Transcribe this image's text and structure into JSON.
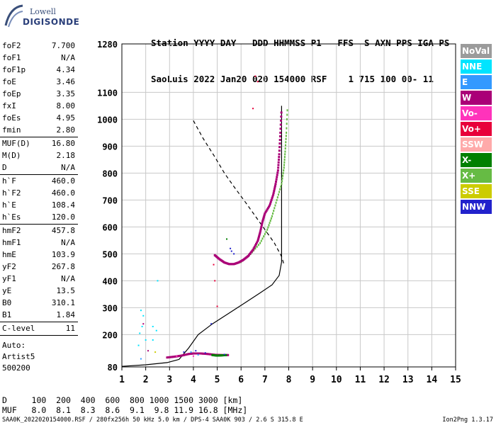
{
  "logo": {
    "line1": "Lowell",
    "line2": "DIGISONDE"
  },
  "header": {
    "line1": "Station YYYY DAY   DDD HHMMSS P1   FFS  S AXN PPS IGA PS",
    "line2": "SaoLuis 2022 Jan20 020 154000 RSF    1 715 100 00- 11"
  },
  "params": [
    {
      "label": "foF2",
      "value": "7.700"
    },
    {
      "label": "foF1",
      "value": "N/A"
    },
    {
      "label": "foF1p",
      "value": "4.34"
    },
    {
      "label": "foE",
      "value": "3.46"
    },
    {
      "label": "foEp",
      "value": "3.35"
    },
    {
      "label": "fxI",
      "value": "8.00"
    },
    {
      "label": "foEs",
      "value": "4.95"
    },
    {
      "label": "fmin",
      "value": "2.80"
    },
    {
      "sep": true
    },
    {
      "label": "MUF(D)",
      "value": "16.80"
    },
    {
      "label": "M(D)",
      "value": "2.18"
    },
    {
      "label": "D",
      "value": "N/A"
    },
    {
      "sep": true
    },
    {
      "label": "h`F",
      "value": "460.0"
    },
    {
      "label": "h`F2",
      "value": "460.0"
    },
    {
      "label": "h`E",
      "value": "108.4"
    },
    {
      "label": "h`Es",
      "value": "120.0"
    },
    {
      "sep": true
    },
    {
      "label": "hmF2",
      "value": "457.8"
    },
    {
      "label": "hmF1",
      "value": "N/A"
    },
    {
      "label": "hmE",
      "value": "103.9"
    },
    {
      "label": "yF2",
      "value": "267.8"
    },
    {
      "label": "yF1",
      "value": "N/A"
    },
    {
      "label": "yE",
      "value": "13.5"
    },
    {
      "label": "B0",
      "value": "310.1"
    },
    {
      "label": "B1",
      "value": "1.84"
    },
    {
      "sep": true
    },
    {
      "label": "C-level",
      "value": "11"
    },
    {
      "sep": true
    }
  ],
  "auto": {
    "line1": "Auto:",
    "line2": "Artist5",
    "line3": "500200"
  },
  "legend": [
    {
      "label": "NoVal",
      "color": "#9b9b9b"
    },
    {
      "label": "NNE",
      "color": "#00e4ff"
    },
    {
      "label": "E",
      "color": "#3399ff"
    },
    {
      "label": "W",
      "color": "#aa0077"
    },
    {
      "label": "Vo-",
      "color": "#ff33bb"
    },
    {
      "label": "Vo+",
      "color": "#e8003a"
    },
    {
      "label": "SSW",
      "color": "#ffaaaa"
    },
    {
      "label": "X-",
      "color": "#008000"
    },
    {
      "label": "X+",
      "color": "#66bb44"
    },
    {
      "label": "SSE",
      "color": "#cccc00"
    },
    {
      "label": "NNW",
      "color": "#2222cc"
    }
  ],
  "muf_table": {
    "line1": "D     100  200  400  600  800 1000 1500 3000 [km]",
    "line2": "MUF   8.0  8.1  8.3  8.6  9.1  9.8 11.9 16.8 [MHz]"
  },
  "footer": "SAA0K_2022020154000.RSF / 280fx256h 50 kHz 5.0 km / DPS-4 SAA0K 903 / 2.6 S 315.8 E",
  "version": "Ion2Png 1.3.17",
  "chart_data": {
    "type": "scatter",
    "xlim": [
      1,
      15
    ],
    "ylim": [
      80,
      1280
    ],
    "xticks": [
      1,
      2,
      3,
      4,
      5,
      6,
      7,
      8,
      9,
      10,
      11,
      12,
      13,
      14,
      15
    ],
    "yticks": [
      80,
      200,
      300,
      400,
      500,
      600,
      700,
      800,
      900,
      1000,
      1100,
      1280
    ],
    "grid": true,
    "profile": {
      "color": "#000000",
      "points": [
        [
          1.0,
          82
        ],
        [
          2.0,
          88
        ],
        [
          2.9,
          96
        ],
        [
          3.4,
          108
        ],
        [
          3.8,
          150
        ],
        [
          4.2,
          200
        ],
        [
          4.8,
          240
        ],
        [
          5.5,
          280
        ],
        [
          6.2,
          320
        ],
        [
          6.8,
          355
        ],
        [
          7.3,
          385
        ],
        [
          7.6,
          420
        ],
        [
          7.7,
          470
        ],
        [
          7.7,
          600
        ],
        [
          7.7,
          800
        ],
        [
          7.7,
          1050
        ]
      ]
    },
    "model": {
      "color": "#000000",
      "points": [
        [
          4.0,
          995
        ],
        [
          4.4,
          930
        ],
        [
          4.9,
          860
        ],
        [
          5.3,
          800
        ],
        [
          5.7,
          750
        ],
        [
          6.2,
          690
        ],
        [
          6.6,
          640
        ],
        [
          7.0,
          590
        ],
        [
          7.4,
          540
        ],
        [
          7.7,
          490
        ],
        [
          7.8,
          460
        ]
      ]
    },
    "trace_F2": {
      "color": "#aa0077",
      "points": [
        [
          4.9,
          495
        ],
        [
          5.1,
          480
        ],
        [
          5.3,
          468
        ],
        [
          5.5,
          462
        ],
        [
          5.7,
          462
        ],
        [
          5.9,
          468
        ],
        [
          6.1,
          478
        ],
        [
          6.3,
          492
        ],
        [
          6.5,
          515
        ],
        [
          6.7,
          548
        ],
        [
          6.8,
          580
        ],
        [
          6.9,
          620
        ],
        [
          7.0,
          650
        ],
        [
          7.2,
          680
        ],
        [
          7.35,
          720
        ],
        [
          7.45,
          760
        ],
        [
          7.55,
          810
        ],
        [
          7.6,
          870
        ],
        [
          7.65,
          950
        ],
        [
          7.7,
          1040
        ]
      ]
    },
    "trace_X": {
      "color": "#66bb44",
      "points": [
        [
          6.0,
          470
        ],
        [
          6.4,
          500
        ],
        [
          6.8,
          540
        ],
        [
          7.1,
          590
        ],
        [
          7.3,
          640
        ],
        [
          7.5,
          700
        ],
        [
          7.7,
          760
        ],
        [
          7.8,
          820
        ],
        [
          7.85,
          880
        ],
        [
          7.9,
          950
        ],
        [
          7.95,
          1050
        ]
      ]
    },
    "trace_E": {
      "color": "#aa0077",
      "points": [
        [
          2.9,
          115
        ],
        [
          3.2,
          118
        ],
        [
          3.5,
          122
        ],
        [
          3.8,
          128
        ],
        [
          4.0,
          130
        ],
        [
          4.3,
          130
        ],
        [
          4.6,
          128
        ],
        [
          4.9,
          125
        ],
        [
          5.2,
          124
        ],
        [
          5.5,
          124
        ]
      ]
    },
    "trace_EX": {
      "color": "#008000",
      "points": [
        [
          4.8,
          124
        ],
        [
          5.0,
          122
        ],
        [
          5.2,
          123
        ],
        [
          5.4,
          124
        ]
      ]
    },
    "scatter": [
      {
        "x": 1.8,
        "y": 290,
        "c": "#00e4ff"
      },
      {
        "x": 1.9,
        "y": 270,
        "c": "#00e4ff"
      },
      {
        "x": 1.85,
        "y": 230,
        "c": "#00e4ff"
      },
      {
        "x": 1.75,
        "y": 205,
        "c": "#00e4ff"
      },
      {
        "x": 2.0,
        "y": 180,
        "c": "#00e4ff"
      },
      {
        "x": 1.7,
        "y": 160,
        "c": "#00e4ff"
      },
      {
        "x": 2.3,
        "y": 230,
        "c": "#00e4ff"
      },
      {
        "x": 2.45,
        "y": 215,
        "c": "#00e4ff"
      },
      {
        "x": 2.3,
        "y": 180,
        "c": "#00e4ff"
      },
      {
        "x": 2.5,
        "y": 400,
        "c": "#00e4ff"
      },
      {
        "x": 1.9,
        "y": 240,
        "c": "#aa0077"
      },
      {
        "x": 2.1,
        "y": 140,
        "c": "#aa0077"
      },
      {
        "x": 1.8,
        "y": 110,
        "c": "#3399ff"
      },
      {
        "x": 2.4,
        "y": 135,
        "c": "#cccc00"
      },
      {
        "x": 4.9,
        "y": 400,
        "c": "#e8003a"
      },
      {
        "x": 4.85,
        "y": 460,
        "c": "#e8003a"
      },
      {
        "x": 5.0,
        "y": 305,
        "c": "#e8003a"
      },
      {
        "x": 6.6,
        "y": 1160,
        "c": "#e8003a"
      },
      {
        "x": 6.7,
        "y": 1140,
        "c": "#e8003a"
      },
      {
        "x": 6.5,
        "y": 1040,
        "c": "#e8003a"
      },
      {
        "x": 5.4,
        "y": 555,
        "c": "#008000"
      },
      {
        "x": 5.6,
        "y": 510,
        "c": "#2222cc"
      },
      {
        "x": 5.7,
        "y": 500,
        "c": "#2222cc"
      },
      {
        "x": 5.55,
        "y": 520,
        "c": "#2222cc"
      },
      {
        "x": 4.75,
        "y": 240,
        "c": "#2222cc"
      },
      {
        "x": 3.6,
        "y": 135,
        "c": "#2222cc"
      },
      {
        "x": 4.1,
        "y": 140,
        "c": "#2222cc"
      },
      {
        "x": 4.5,
        "y": 132,
        "c": "#2222cc"
      },
      {
        "x": 5.3,
        "y": 126,
        "c": "#2222cc"
      },
      {
        "x": 3.9,
        "y": 135,
        "c": "#3399ff"
      },
      {
        "x": 4.2,
        "y": 125,
        "c": "#3399ff"
      },
      {
        "x": 3.3,
        "y": 120,
        "c": "#ff33bb"
      },
      {
        "x": 4.0,
        "y": 120,
        "c": "#ff33bb"
      }
    ]
  }
}
